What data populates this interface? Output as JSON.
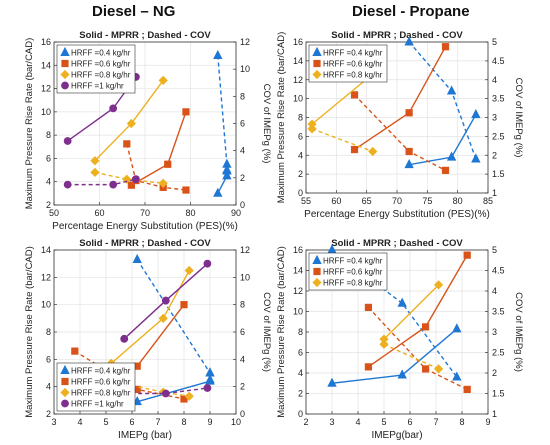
{
  "column_titles": [
    "Diesel – NG",
    "Diesel - Propane"
  ],
  "colors": {
    "HRFF04": "#1f77d4",
    "HRFF06": "#d95319",
    "HRFF08": "#edb120",
    "HRFF1": "#7e2f8e"
  },
  "chart_data": [
    {
      "type": "line",
      "title": "Solid - MPRR ; Dashed - COV",
      "xlabel": "Percentage Energy Substitution (PES)(%)",
      "ylabel": "Maximum Pressure Rise Rate (bar/CAD)",
      "y2label": "COV of IMEPg (%)",
      "xlim": [
        50,
        90
      ],
      "ylim": [
        2,
        16
      ],
      "y2lim": [
        0,
        12
      ],
      "xticks": [
        "50",
        "60",
        "70",
        "80",
        "90"
      ],
      "yticks": [
        "2",
        "4",
        "6",
        "8",
        "10",
        "12",
        "14",
        "16"
      ],
      "y2ticks": [
        "0",
        "2",
        "4",
        "6",
        "8",
        "10",
        "12"
      ],
      "grid": true,
      "legend_position": "top-left",
      "series": [
        {
          "name": "HRFF =0.4 kg/hr",
          "color": "#1f77d4",
          "marker": "triangle",
          "mprr": {
            "x": [
              86,
              88,
              88
            ],
            "y": [
              3,
              4.5,
              5
            ]
          },
          "cov": {
            "x": [
              86,
              88,
              88
            ],
            "y": [
              11,
              3,
              2.5
            ]
          }
        },
        {
          "name": "HRFF =0.6 kg/hr",
          "color": "#d95319",
          "marker": "square",
          "mprr": {
            "x": [
              67,
              75,
              79
            ],
            "y": [
              3.7,
              5.5,
              10
            ]
          },
          "cov": {
            "x": [
              66,
              68,
              74,
              79
            ],
            "y": [
              4.5,
              1.8,
              1.3,
              1.1
            ]
          }
        },
        {
          "name": "HRFF =0.8 kg/hr",
          "color": "#edb120",
          "marker": "diamond",
          "mprr": {
            "x": [
              59,
              67,
              74
            ],
            "y": [
              5.8,
              9,
              12.7
            ]
          },
          "cov": {
            "x": [
              59,
              66,
              74
            ],
            "y": [
              2.4,
              1.9,
              1.6
            ]
          }
        },
        {
          "name": "HRFF =1 kg/hr",
          "color": "#7e2f8e",
          "marker": "circle",
          "mprr": {
            "x": [
              53,
              63,
              68
            ],
            "y": [
              7.5,
              10.3,
              13
            ]
          },
          "cov": {
            "x": [
              53,
              63,
              68
            ],
            "y": [
              1.5,
              1.5,
              1.9
            ]
          }
        }
      ]
    },
    {
      "type": "line",
      "title": "Solid - MPRR ; Dashed - COV",
      "xlabel": "Percentage Energy Substitution (PES)(%)",
      "ylabel": "Maximum Pressure Rise Rate (bar/CAD)",
      "y2label": "COV of IMEPg (%)",
      "xlim": [
        55,
        85
      ],
      "ylim": [
        0,
        16
      ],
      "y2lim": [
        1,
        5
      ],
      "xticks": [
        "55",
        "60",
        "65",
        "70",
        "75",
        "80",
        "85"
      ],
      "yticks": [
        "0",
        "2",
        "4",
        "6",
        "8",
        "10",
        "12",
        "14",
        "16"
      ],
      "y2ticks": [
        "1",
        "1.5",
        "2",
        "2.5",
        "3",
        "3.5",
        "4",
        "4.5",
        "5"
      ],
      "grid": true,
      "legend_position": "top-left",
      "series": [
        {
          "name": "HRFF =0.4 kg/hr",
          "color": "#1f77d4",
          "marker": "triangle",
          "mprr": {
            "x": [
              72,
              79,
              83
            ],
            "y": [
              3,
              3.8,
              8.3
            ]
          },
          "cov": {
            "x": [
              72,
              79,
              83
            ],
            "y": [
              5,
              3.7,
              1.9
            ]
          }
        },
        {
          "name": "HRFF =0.6 kg/hr",
          "color": "#d95319",
          "marker": "square",
          "mprr": {
            "x": [
              63,
              72,
              78
            ],
            "y": [
              4.6,
              8.5,
              15.5
            ]
          },
          "cov": {
            "x": [
              63,
              72,
              78
            ],
            "y": [
              3.6,
              2.1,
              1.6
            ]
          }
        },
        {
          "name": "HRFF =0.8 kg/hr",
          "color": "#edb120",
          "marker": "diamond",
          "mprr": {
            "x": [
              56,
              66
            ],
            "y": [
              7.3,
              12.6
            ]
          },
          "cov": {
            "x": [
              56,
              66
            ],
            "y": [
              2.7,
              2.1
            ]
          }
        }
      ]
    },
    {
      "type": "line",
      "title": "Solid - MPRR ; Dashed - COV",
      "xlabel": "IMEPg (bar)",
      "ylabel": "Maximum Pressure Rise Rate (bar/CAD)",
      "y2label": "COV of IMEPg (%)",
      "xlim": [
        3,
        10
      ],
      "ylim": [
        2,
        14
      ],
      "y2lim": [
        0,
        12
      ],
      "xticks": [
        "3",
        "4",
        "5",
        "6",
        "7",
        "8",
        "9",
        "10"
      ],
      "yticks": [
        "2",
        "4",
        "6",
        "8",
        "10",
        "12",
        "14"
      ],
      "y2ticks": [
        "0",
        "2",
        "4",
        "6",
        "8",
        "10",
        "12"
      ],
      "grid": true,
      "legend_position": "bottom-left",
      "series": [
        {
          "name": "HRFF =0.4 kg/hr",
          "color": "#1f77d4",
          "marker": "triangle",
          "mprr": {
            "x": [
              6.2,
              9,
              9
            ],
            "y": [
              2.9,
              4.4,
              5
            ]
          },
          "cov": {
            "x": [
              6.2,
              9,
              9
            ],
            "y": [
              11.3,
              3,
              2.5
            ]
          }
        },
        {
          "name": "HRFF =0.6 kg/hr",
          "color": "#d95319",
          "marker": "square",
          "mprr": {
            "x": [
              3.8,
              6.2,
              8
            ],
            "y": [
              3.7,
              5.5,
              10
            ]
          },
          "cov": {
            "x": [
              3.8,
              6.2,
              8
            ],
            "y": [
              4.6,
              1.8,
              1.1
            ]
          }
        },
        {
          "name": "HRFF =0.8 kg/hr",
          "color": "#edb120",
          "marker": "diamond",
          "mprr": {
            "x": [
              5.2,
              7.2,
              8.2
            ],
            "y": [
              5.7,
              9,
              12.5
            ]
          },
          "cov": {
            "x": [
              5.2,
              7.2,
              8.2
            ],
            "y": [
              2.4,
              1.6,
              1.3
            ]
          }
        },
        {
          "name": "HRFF =1 kg/hr",
          "color": "#7e2f8e",
          "marker": "circle",
          "mprr": {
            "x": [
              5.7,
              7.3,
              8.9
            ],
            "y": [
              7.5,
              10.3,
              13
            ]
          },
          "cov": {
            "x": [
              5.7,
              7.3,
              8.9
            ],
            "y": [
              1.5,
              1.5,
              1.9
            ]
          }
        }
      ]
    },
    {
      "type": "line",
      "title": "Solid - MPRR ; Dashed - COV",
      "xlabel": "IMEPg(bar)",
      "ylabel": "Maximum Pressure Rise Rate (bar/CAD)",
      "y2label": "COV of IMEPg (%)",
      "xlim": [
        2,
        9
      ],
      "ylim": [
        0,
        16
      ],
      "y2lim": [
        1,
        5
      ],
      "xticks": [
        "2",
        "3",
        "4",
        "5",
        "6",
        "7",
        "8",
        "9"
      ],
      "yticks": [
        "0",
        "2",
        "4",
        "6",
        "8",
        "10",
        "12",
        "14",
        "16"
      ],
      "y2ticks": [
        "1",
        "1.5",
        "2",
        "2.5",
        "3",
        "3.5",
        "4",
        "4.5",
        "5"
      ],
      "grid": true,
      "legend_position": "top-left",
      "series": [
        {
          "name": "HRFF =0.4 kg/hr",
          "color": "#1f77d4",
          "marker": "triangle",
          "mprr": {
            "x": [
              3,
              5.7,
              7.8
            ],
            "y": [
              3,
              3.8,
              8.3
            ]
          },
          "cov": {
            "x": [
              3,
              5.7,
              7.8
            ],
            "y": [
              5,
              3.7,
              1.9
            ]
          }
        },
        {
          "name": "HRFF =0.6 kg/hr",
          "color": "#d95319",
          "marker": "square",
          "mprr": {
            "x": [
              4.4,
              6.6,
              8.2
            ],
            "y": [
              4.6,
              8.5,
              15.5
            ]
          },
          "cov": {
            "x": [
              4.4,
              6.6,
              8.2
            ],
            "y": [
              3.6,
              2.1,
              1.6
            ]
          }
        },
        {
          "name": "HRFF =0.8 kg/hr",
          "color": "#edb120",
          "marker": "diamond",
          "mprr": {
            "x": [
              5,
              7.1
            ],
            "y": [
              7.3,
              12.6
            ]
          },
          "cov": {
            "x": [
              5,
              7.1
            ],
            "y": [
              2.7,
              2.1
            ]
          }
        }
      ]
    }
  ]
}
